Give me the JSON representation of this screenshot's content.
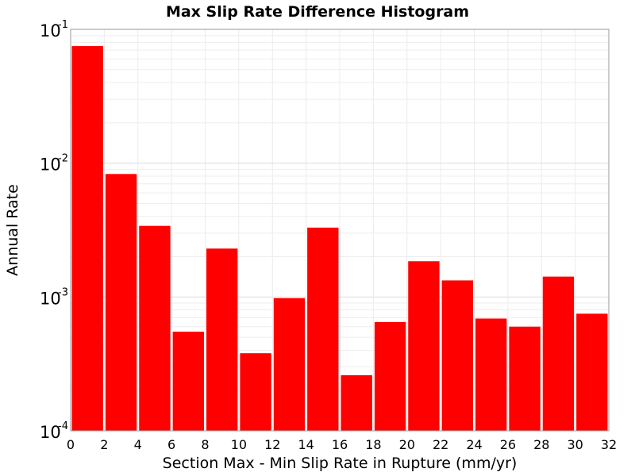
{
  "chart_data": {
    "type": "bar",
    "title": "Max Slip Rate Difference Histogram",
    "xlabel": "Section Max - Min Slip Rate in Rupture (mm/yr)",
    "ylabel": "Annual Rate",
    "xlim": [
      0,
      32
    ],
    "ylim": [
      0.0001,
      0.1
    ],
    "yscale": "log",
    "bin_width": 2,
    "x_ticks": [
      "0",
      "2",
      "4",
      "6",
      "8",
      "10",
      "12",
      "14",
      "16",
      "18",
      "20",
      "22",
      "24",
      "26",
      "28",
      "30",
      "32"
    ],
    "y_ticks": [
      {
        "base": "10",
        "exp": "-4",
        "value": 0.0001
      },
      {
        "base": "10",
        "exp": "-3",
        "value": 0.001
      },
      {
        "base": "10",
        "exp": "-2",
        "value": 0.01
      },
      {
        "base": "10",
        "exp": "-1",
        "value": 0.1
      }
    ],
    "bins": [
      {
        "start": 0,
        "end": 2,
        "value": 0.075
      },
      {
        "start": 2,
        "end": 4,
        "value": 0.0083
      },
      {
        "start": 4,
        "end": 6,
        "value": 0.0034
      },
      {
        "start": 6,
        "end": 8,
        "value": 0.00055
      },
      {
        "start": 8,
        "end": 10,
        "value": 0.0023
      },
      {
        "start": 10,
        "end": 12,
        "value": 0.00038
      },
      {
        "start": 12,
        "end": 14,
        "value": 0.00098
      },
      {
        "start": 14,
        "end": 16,
        "value": 0.0033
      },
      {
        "start": 16,
        "end": 18,
        "value": 0.00026
      },
      {
        "start": 18,
        "end": 20,
        "value": 0.00065
      },
      {
        "start": 20,
        "end": 22,
        "value": 0.00185
      },
      {
        "start": 22,
        "end": 24,
        "value": 0.00133
      },
      {
        "start": 24,
        "end": 26,
        "value": 0.00069
      },
      {
        "start": 26,
        "end": 28,
        "value": 0.0006
      },
      {
        "start": 28,
        "end": 30,
        "value": 0.00142
      },
      {
        "start": 30,
        "end": 32,
        "value": 0.00075
      }
    ],
    "bar_color": "#ff0000",
    "grid": true,
    "legend": "none"
  }
}
